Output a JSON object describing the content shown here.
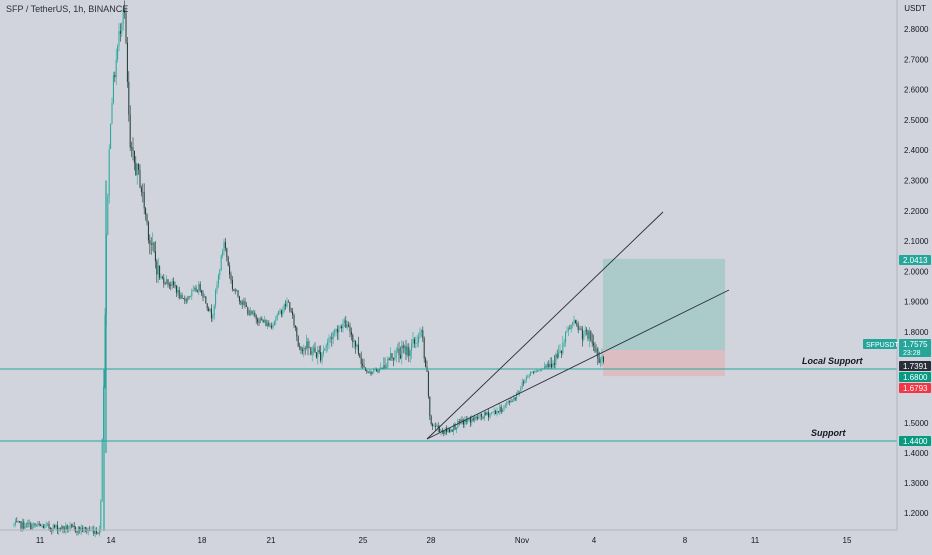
{
  "header": {
    "legend": "SFP / TetherUS, 1h, BINANCE",
    "unit": "USDT"
  },
  "chart_data": {
    "type": "candlestick",
    "symbol": "SFPUSDT",
    "y_ticks": [
      2.8,
      2.7,
      2.6,
      2.5,
      2.4,
      2.3,
      2.2,
      2.1,
      2.0,
      1.9,
      1.8,
      1.5,
      1.4,
      1.3,
      1.2
    ],
    "y_tick_labels": [
      "2.8000",
      "2.7000",
      "2.6000",
      "2.5000",
      "2.4000",
      "2.3000",
      "2.2000",
      "2.1000",
      "2.0000",
      "1.9000",
      "1.8000",
      "1.5000",
      "1.4000",
      "1.3000",
      "1.2000"
    ],
    "x_tick_labels": [
      "11",
      "14",
      "18",
      "21",
      "25",
      "28",
      "Nov",
      "4",
      "8",
      "11",
      "15"
    ],
    "price_labels": [
      {
        "value": 2.0413,
        "text": "2.0413",
        "color": "#26a69a"
      },
      {
        "value": 1.7575,
        "text": "1.7575",
        "sub": "23:28",
        "color": "#26a69a"
      },
      {
        "value": 1.7391,
        "text": "1.7391",
        "color": "#2a2e39"
      },
      {
        "value": 1.68,
        "text": "1.6800",
        "color": "#089981"
      },
      {
        "value": 1.6793,
        "text": "1.6793",
        "color": "#f23645"
      },
      {
        "value": 1.44,
        "text": "1.4400",
        "color": "#089981"
      }
    ],
    "symbol_label": "SFPUSDT",
    "horizontal_levels": [
      {
        "value": 1.68,
        "label": "Local Support"
      },
      {
        "value": 1.44,
        "label": "Support"
      }
    ],
    "position": {
      "entry": 1.7391,
      "target": 2.0413,
      "stop": 1.6793
    },
    "trendlines": [
      {
        "from": [
          0,
          1.44
        ],
        "to": [
          1,
          2.2
        ]
      },
      {
        "from": [
          0,
          1.44
        ],
        "to": [
          1,
          1.94
        ]
      }
    ],
    "colors": {
      "up": "#26a69a",
      "down": "#1d3b36",
      "level": "#26a69a",
      "target_zone": "#a4c9c8",
      "stop_zone": "#deb9bd"
    }
  }
}
